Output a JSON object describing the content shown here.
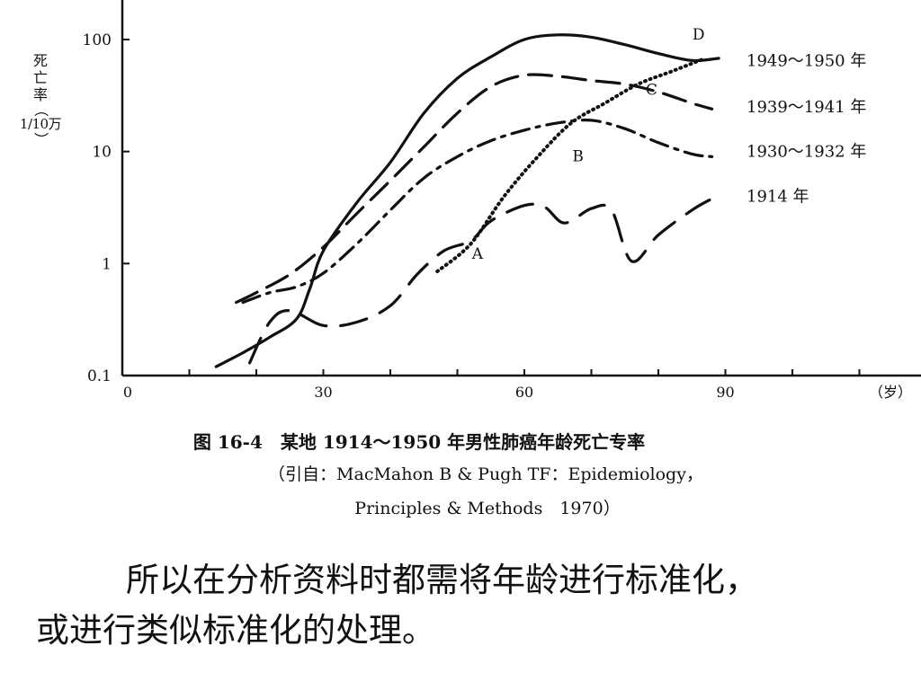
{
  "chart_data": {
    "type": "line",
    "title": "图 16-4　某地 1914～1950 年男性肺癌年龄死亡专率",
    "source_line1": "（引自：MacMahon B & Pugh TF：Epidemiology，",
    "source_line2": "Principles & Methods　1970）",
    "ylabel": "死亡率（1/10万）",
    "xlabel": "（岁）",
    "yscale": "log",
    "ylim": [
      0.1,
      130
    ],
    "xlim": [
      0,
      120
    ],
    "x_ticks": [
      0,
      10,
      20,
      30,
      40,
      50,
      60,
      70,
      80,
      90,
      100,
      110
    ],
    "x_tick_labels": [
      {
        "x": 0,
        "label": "0"
      },
      {
        "x": 30,
        "label": "30"
      },
      {
        "x": 60,
        "label": "60"
      },
      {
        "x": 90,
        "label": "90"
      }
    ],
    "y_tick_labels": [
      {
        "y": 100,
        "label": "100"
      },
      {
        "y": 10,
        "label": "10"
      },
      {
        "y": 1,
        "label": "1"
      },
      {
        "y": 0.1,
        "label": "0.1"
      }
    ],
    "series": [
      {
        "name": "1949～1950 年",
        "style": "solid",
        "points": [
          [
            14,
            0.12
          ],
          [
            18,
            0.16
          ],
          [
            22,
            0.22
          ],
          [
            26,
            0.32
          ],
          [
            28,
            0.6
          ],
          [
            30,
            1.3
          ],
          [
            35,
            3.5
          ],
          [
            40,
            8
          ],
          [
            45,
            22
          ],
          [
            50,
            45
          ],
          [
            55,
            70
          ],
          [
            60,
            100
          ],
          [
            65,
            110
          ],
          [
            70,
            105
          ],
          [
            75,
            90
          ],
          [
            80,
            75
          ],
          [
            85,
            65
          ],
          [
            89,
            68
          ]
        ]
      },
      {
        "name": "1939～1941 年",
        "style": "dashed",
        "points": [
          [
            17,
            0.45
          ],
          [
            20,
            0.55
          ],
          [
            25,
            0.8
          ],
          [
            30,
            1.4
          ],
          [
            35,
            2.8
          ],
          [
            40,
            5.5
          ],
          [
            45,
            11
          ],
          [
            50,
            22
          ],
          [
            55,
            38
          ],
          [
            60,
            48
          ],
          [
            65,
            47
          ],
          [
            70,
            43
          ],
          [
            75,
            40
          ],
          [
            80,
            34
          ],
          [
            85,
            27
          ],
          [
            88,
            24
          ]
        ]
      },
      {
        "name": "1930～1932 年",
        "style": "dashdot",
        "points": [
          [
            18,
            0.45
          ],
          [
            22,
            0.55
          ],
          [
            26,
            0.62
          ],
          [
            30,
            0.82
          ],
          [
            35,
            1.5
          ],
          [
            40,
            3
          ],
          [
            45,
            5.8
          ],
          [
            50,
            9
          ],
          [
            55,
            12.5
          ],
          [
            60,
            15.5
          ],
          [
            65,
            18
          ],
          [
            70,
            19
          ],
          [
            75,
            16
          ],
          [
            80,
            12
          ],
          [
            85,
            9.5
          ],
          [
            88,
            9
          ]
        ]
      },
      {
        "name": "1914 年",
        "style": "longdash",
        "points": [
          [
            19,
            0.13
          ],
          [
            22,
            0.3
          ],
          [
            25,
            0.38
          ],
          [
            30,
            0.28
          ],
          [
            35,
            0.3
          ],
          [
            40,
            0.42
          ],
          [
            44,
            0.8
          ],
          [
            48,
            1.3
          ],
          [
            52,
            1.6
          ],
          [
            55,
            2.4
          ],
          [
            60,
            3.3
          ],
          [
            63,
            3.2
          ],
          [
            66,
            2.3
          ],
          [
            70,
            3.1
          ],
          [
            73,
            3
          ],
          [
            76,
            1.05
          ],
          [
            80,
            1.8
          ],
          [
            85,
            3
          ],
          [
            88,
            3.8
          ]
        ]
      },
      {
        "name": "A-B-C-D",
        "style": "dotted",
        "points": [
          [
            47,
            0.85
          ],
          [
            52,
            1.5
          ],
          [
            57,
            4
          ],
          [
            62,
            9
          ],
          [
            67,
            18
          ],
          [
            72,
            27
          ],
          [
            77,
            40
          ],
          [
            82,
            52
          ],
          [
            87,
            68
          ]
        ]
      }
    ],
    "point_annotations": [
      {
        "label": "A",
        "x": 53,
        "y": 1.1
      },
      {
        "label": "B",
        "x": 68,
        "y": 8.2
      },
      {
        "label": "C",
        "x": 79,
        "y": 32
      },
      {
        "label": "D",
        "x": 86,
        "y": 100
      }
    ],
    "legend_labels": [
      {
        "series": "1949～1950 年",
        "text": "1949～1950 年",
        "y": 65
      },
      {
        "series": "1939～1941 年",
        "text": "1939～1941 年",
        "y": 25
      },
      {
        "series": "1930～1932 年",
        "text": "1930～1932 年",
        "y": 10
      },
      {
        "series": "1914 年",
        "text": "1914 年",
        "y": 4
      }
    ],
    "grid": false
  },
  "ylabel_parts": {
    "line1": "死",
    "line2": "亡",
    "line3": "率",
    "open": "（",
    "frac": "1/10万",
    "close": "）"
  },
  "body": {
    "line1": "所以在分析资料时都需将年龄进行标准化，",
    "line2": "或进行类似标准化的处理。"
  }
}
